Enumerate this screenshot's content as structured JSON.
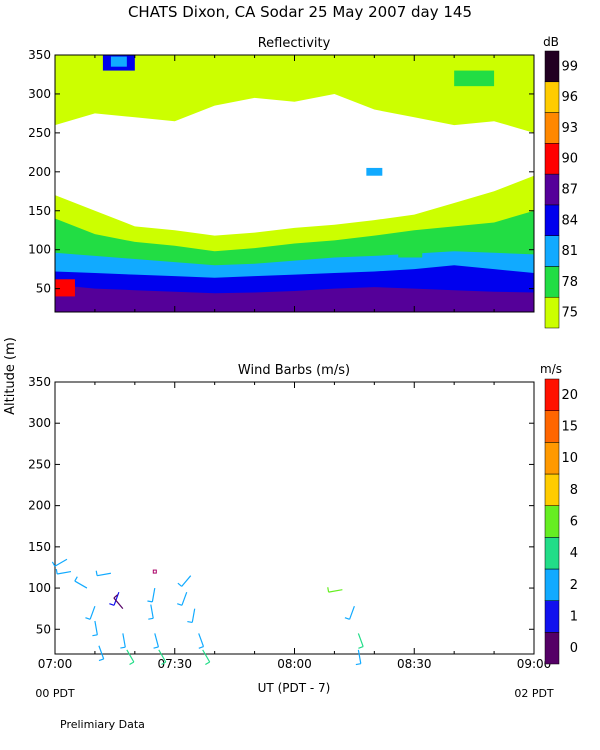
{
  "header": {
    "title": "CHATS Dixon, CA  Sodar  25 May 2007  day 145"
  },
  "footer": {
    "note": "Prelimiary Data"
  },
  "shared": {
    "ylabel": "Altitude (m)",
    "xlabel": "UT  (PDT - 7)"
  },
  "chart_data": [
    {
      "type": "heatmap",
      "title": "Reflectivity",
      "ylim": [
        20,
        350
      ],
      "xlim_min": [
        0,
        120
      ],
      "yticks": [
        50,
        100,
        150,
        200,
        250,
        300,
        350
      ],
      "colorbar": {
        "unit": "dB",
        "colors": [
          "#ccff00",
          "#22dd44",
          "#11aaff",
          "#0000ee",
          "#550099",
          "#ff0000",
          "#ff8800",
          "#ffcc00",
          "#220022"
        ],
        "labels": [
          "75",
          "78",
          "81",
          "84",
          "87",
          "90",
          "93",
          "96",
          "99"
        ]
      },
      "bands": [
        {
          "level": 4,
          "top": [
            55,
            50,
            48,
            46,
            44,
            45,
            47,
            50,
            52,
            50,
            48,
            46,
            45
          ]
        },
        {
          "level": 3,
          "top": [
            72,
            70,
            68,
            66,
            64,
            66,
            68,
            70,
            72,
            75,
            80,
            75,
            70
          ]
        },
        {
          "level": 2,
          "top": [
            96,
            92,
            88,
            84,
            80,
            82,
            86,
            90,
            92,
            95,
            98,
            96,
            94
          ]
        },
        {
          "level": 1,
          "top": [
            140,
            120,
            110,
            105,
            98,
            102,
            108,
            112,
            118,
            125,
            130,
            135,
            150
          ]
        },
        {
          "level": 0,
          "top": [
            170,
            150,
            130,
            125,
            118,
            122,
            128,
            132,
            138,
            145,
            160,
            175,
            195
          ]
        }
      ],
      "upper_band": {
        "bottom": [
          260,
          275,
          270,
          265,
          285,
          295,
          290,
          300,
          280,
          270,
          260,
          265,
          250
        ]
      },
      "patches": [
        {
          "level": 5,
          "x0": 0,
          "x1": 5,
          "y0": 40,
          "y1": 62
        },
        {
          "level": 3,
          "x0": 12,
          "x1": 20,
          "y0": 330,
          "y1": 350
        },
        {
          "level": 2,
          "x0": 14,
          "x1": 18,
          "y0": 335,
          "y1": 348
        },
        {
          "level": 1,
          "x0": 86,
          "x1": 92,
          "y0": 90,
          "y1": 100
        },
        {
          "level": 2,
          "x0": 78,
          "x1": 82,
          "y0": 195,
          "y1": 205
        },
        {
          "level": 1,
          "x0": 100,
          "x1": 110,
          "y0": 310,
          "y1": 330
        }
      ]
    },
    {
      "type": "scatter",
      "title": "Wind Barbs (m/s)",
      "ylim": [
        20,
        350
      ],
      "xlim_min": [
        0,
        120
      ],
      "yticks": [
        50,
        100,
        150,
        200,
        250,
        300,
        350
      ],
      "xticks": [
        "07:00",
        "07:30",
        "08:00",
        "08:30",
        "09:00"
      ],
      "xtick_sub": [
        "00 PDT",
        "02 PDT"
      ],
      "colorbar": {
        "unit": "m/s",
        "colors": [
          "#550066",
          "#1111ee",
          "#11aaff",
          "#22dd88",
          "#66ee22",
          "#ffcc00",
          "#ff9900",
          "#ff6600",
          "#ff1100"
        ],
        "labels": [
          "0",
          "1",
          "2",
          "4",
          "6",
          "8",
          "10",
          "15",
          "20"
        ]
      },
      "barbs": [
        {
          "t": 3,
          "alt": 135,
          "speed": 3.5,
          "dir": 240
        },
        {
          "t": 4,
          "alt": 120,
          "speed": 3.5,
          "dir": 260
        },
        {
          "t": 8,
          "alt": 100,
          "speed": 2.5,
          "dir": 300
        },
        {
          "t": 10,
          "alt": 78,
          "speed": 3.2,
          "dir": 200
        },
        {
          "t": 10,
          "alt": 60,
          "speed": 3.2,
          "dir": 170
        },
        {
          "t": 11,
          "alt": 30,
          "speed": 3.2,
          "dir": 160
        },
        {
          "t": 14,
          "alt": 118,
          "speed": 3.2,
          "dir": 260
        },
        {
          "t": 16,
          "alt": 95,
          "speed": 1.5,
          "dir": 200
        },
        {
          "t": 17,
          "alt": 75,
          "speed": 0.8,
          "dir": 320
        },
        {
          "t": 17,
          "alt": 45,
          "speed": 3.2,
          "dir": 170
        },
        {
          "t": 18,
          "alt": 25,
          "speed": 4.5,
          "dir": 150
        },
        {
          "t": 25,
          "alt": 120,
          "speed": 0.2,
          "dir": 0
        },
        {
          "t": 25,
          "alt": 100,
          "speed": 3.2,
          "dir": 190
        },
        {
          "t": 24,
          "alt": 80,
          "speed": 3.2,
          "dir": 170
        },
        {
          "t": 25,
          "alt": 45,
          "speed": 3.2,
          "dir": 165
        },
        {
          "t": 26,
          "alt": 25,
          "speed": 4.5,
          "dir": 150
        },
        {
          "t": 34,
          "alt": 115,
          "speed": 3.2,
          "dir": 220
        },
        {
          "t": 33,
          "alt": 95,
          "speed": 3.2,
          "dir": 200
        },
        {
          "t": 35,
          "alt": 75,
          "speed": 3.2,
          "dir": 190
        },
        {
          "t": 36,
          "alt": 45,
          "speed": 3.2,
          "dir": 160
        },
        {
          "t": 37,
          "alt": 25,
          "speed": 4.5,
          "dir": 150
        },
        {
          "t": 72,
          "alt": 98,
          "speed": 7.5,
          "dir": 260
        },
        {
          "t": 75,
          "alt": 78,
          "speed": 3.2,
          "dir": 200
        },
        {
          "t": 76,
          "alt": 45,
          "speed": 4.5,
          "dir": 160
        },
        {
          "t": 76,
          "alt": 25,
          "speed": 3.2,
          "dir": 170
        }
      ]
    }
  ]
}
